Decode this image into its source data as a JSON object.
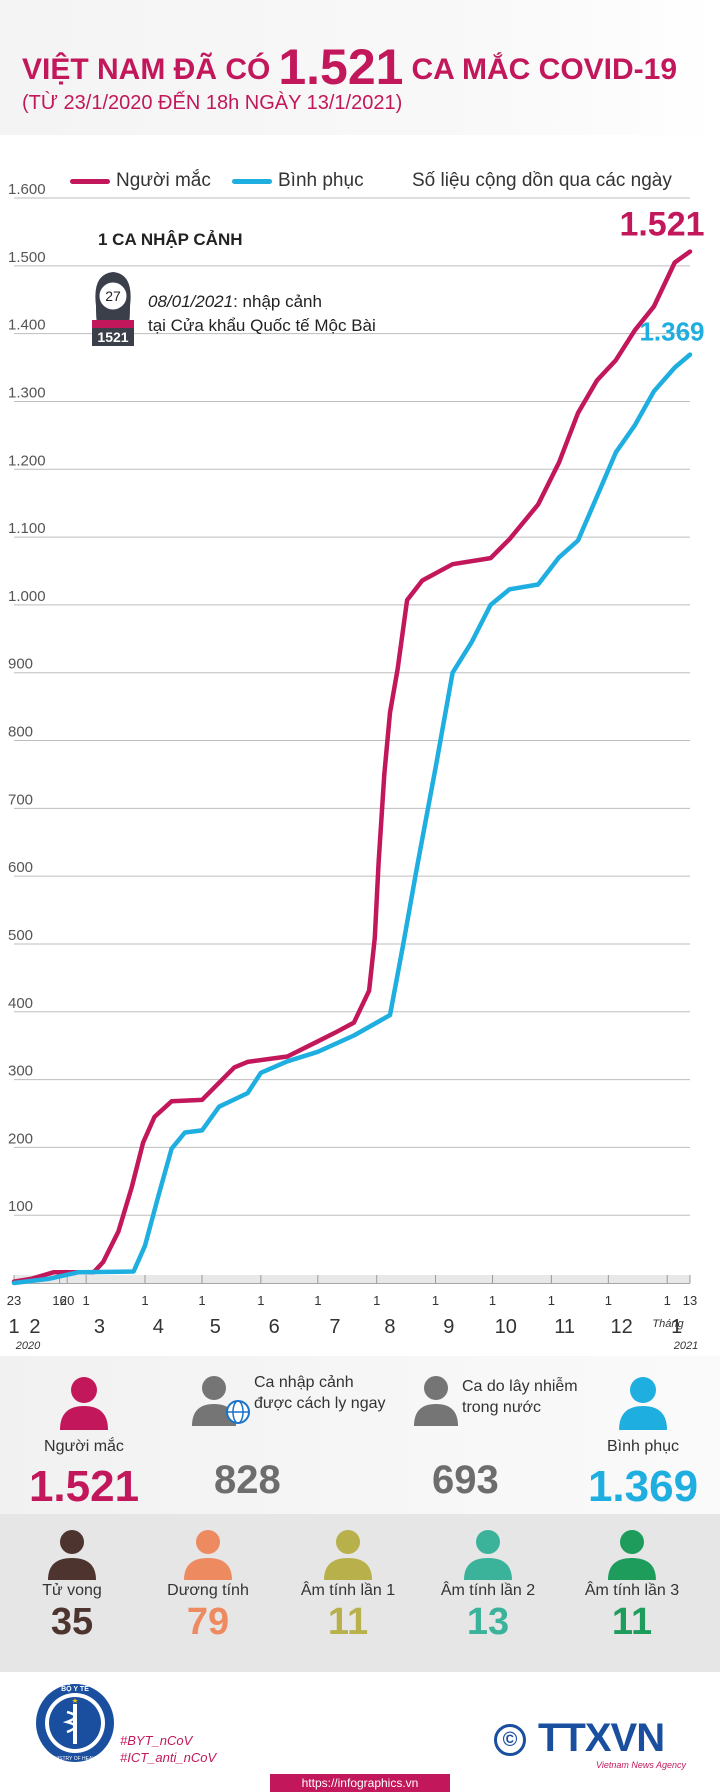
{
  "header": {
    "title_prefix": "VIỆT NAM ĐÃ CÓ",
    "title_number": "1.521",
    "title_suffix": "CA MẮC COVID-19",
    "subtitle": "(TỪ 23/1/2020 ĐẾN 18h NGÀY 13/1/2021)"
  },
  "legend": {
    "cases": "Người mắc",
    "recovered": "Bình phục",
    "note": "Số liệu cộng dồn qua các ngày"
  },
  "colors": {
    "cases": "#c2185b",
    "recovered": "#1eaee0",
    "grid": "#bdbdbd",
    "axis": "#555555"
  },
  "annotation": {
    "title": "1 CA NHẬP CẢNH",
    "badge_age": "27",
    "badge_id": "1521",
    "date": "08/01/2021",
    "text_line1": ": nhập cảnh",
    "text_line2": "tại Cửa khẩu Quốc tế Mộc Bài",
    "icon": "female-patient-icon"
  },
  "chart_data": {
    "type": "line",
    "ylim": [
      0,
      1600
    ],
    "y_ticks": [
      0,
      100,
      200,
      300,
      400,
      500,
      600,
      700,
      800,
      900,
      1000,
      1100,
      1200,
      1300,
      1400,
      1500,
      1600
    ],
    "y_tick_labels": [
      "",
      "100",
      "200",
      "300",
      "400",
      "500",
      "600",
      "700",
      "800",
      "900",
      "1.000",
      "1.100",
      "1.200",
      "1.300",
      "1.400",
      "1.500",
      "1.600"
    ],
    "x_start": "2020-01-23",
    "x_end": "2021-01-13",
    "x_day_labels": [
      {
        "date": "2020-01-23",
        "text": "23"
      },
      {
        "date": "2020-02-16",
        "text": "16"
      },
      {
        "date": "2020-02-20",
        "text": "20"
      },
      {
        "date": "2020-03-01",
        "text": "1"
      },
      {
        "date": "2020-04-01",
        "text": "1"
      },
      {
        "date": "2020-05-01",
        "text": "1"
      },
      {
        "date": "2020-06-01",
        "text": "1"
      },
      {
        "date": "2020-07-01",
        "text": "1"
      },
      {
        "date": "2020-08-01",
        "text": "1"
      },
      {
        "date": "2020-09-01",
        "text": "1"
      },
      {
        "date": "2020-10-01",
        "text": "1"
      },
      {
        "date": "2020-11-01",
        "text": "1"
      },
      {
        "date": "2020-12-01",
        "text": "1"
      },
      {
        "date": "2021-01-01",
        "text": "1"
      },
      {
        "date": "2021-01-13",
        "text": "13"
      }
    ],
    "x_month_labels": [
      {
        "date": "2020-01-23",
        "text": "1"
      },
      {
        "date": "2020-02-03",
        "text": "2"
      },
      {
        "date": "2020-03-08",
        "text": "3"
      },
      {
        "date": "2020-04-08",
        "text": "4"
      },
      {
        "date": "2020-05-08",
        "text": "5"
      },
      {
        "date": "2020-06-08",
        "text": "6"
      },
      {
        "date": "2020-07-10",
        "text": "7"
      },
      {
        "date": "2020-08-08",
        "text": "8"
      },
      {
        "date": "2020-09-08",
        "text": "9"
      },
      {
        "date": "2020-10-08",
        "text": "10"
      },
      {
        "date": "2020-11-08",
        "text": "11"
      },
      {
        "date": "2020-12-08",
        "text": "12"
      },
      {
        "date": "2021-01-06",
        "text": "1"
      }
    ],
    "year_start_label": "2020",
    "year_end_label": "2021",
    "month_word": "Tháng",
    "series": [
      {
        "name": "Người mắc",
        "color": "#c2185b",
        "end_label": "1.521",
        "points": [
          [
            "2020-01-23",
            2
          ],
          [
            "2020-02-01",
            6
          ],
          [
            "2020-02-13",
            16
          ],
          [
            "2020-03-05",
            16
          ],
          [
            "2020-03-10",
            31
          ],
          [
            "2020-03-18",
            76
          ],
          [
            "2020-03-25",
            141
          ],
          [
            "2020-03-31",
            207
          ],
          [
            "2020-04-06",
            245
          ],
          [
            "2020-04-15",
            268
          ],
          [
            "2020-05-01",
            270
          ],
          [
            "2020-05-18",
            318
          ],
          [
            "2020-05-25",
            326
          ],
          [
            "2020-06-15",
            334
          ],
          [
            "2020-06-30",
            355
          ],
          [
            "2020-07-10",
            369
          ],
          [
            "2020-07-20",
            384
          ],
          [
            "2020-07-28",
            431
          ],
          [
            "2020-07-31",
            509
          ],
          [
            "2020-08-02",
            620
          ],
          [
            "2020-08-05",
            750
          ],
          [
            "2020-08-08",
            841
          ],
          [
            "2020-08-12",
            905
          ],
          [
            "2020-08-17",
            1007
          ],
          [
            "2020-08-25",
            1036
          ],
          [
            "2020-09-10",
            1060
          ],
          [
            "2020-09-30",
            1069
          ],
          [
            "2020-10-10",
            1097
          ],
          [
            "2020-10-25",
            1148
          ],
          [
            "2020-11-05",
            1210
          ],
          [
            "2020-11-15",
            1283
          ],
          [
            "2020-11-25",
            1331
          ],
          [
            "2020-12-05",
            1361
          ],
          [
            "2020-12-15",
            1405
          ],
          [
            "2020-12-25",
            1440
          ],
          [
            "2021-01-05",
            1505
          ],
          [
            "2021-01-13",
            1521
          ]
        ]
      },
      {
        "name": "Bình phục",
        "color": "#1eaee0",
        "end_label": "1.369",
        "points": [
          [
            "2020-01-23",
            0
          ],
          [
            "2020-02-10",
            6
          ],
          [
            "2020-02-26",
            16
          ],
          [
            "2020-03-26",
            17
          ],
          [
            "2020-04-01",
            55
          ],
          [
            "2020-04-08",
            128
          ],
          [
            "2020-04-15",
            198
          ],
          [
            "2020-04-22",
            222
          ],
          [
            "2020-05-01",
            225
          ],
          [
            "2020-05-10",
            260
          ],
          [
            "2020-05-25",
            280
          ],
          [
            "2020-06-01",
            310
          ],
          [
            "2020-06-15",
            327
          ],
          [
            "2020-07-01",
            341
          ],
          [
            "2020-07-20",
            365
          ],
          [
            "2020-08-08",
            395
          ],
          [
            "2020-08-15",
            500
          ],
          [
            "2020-08-22",
            610
          ],
          [
            "2020-09-01",
            760
          ],
          [
            "2020-09-10",
            900
          ],
          [
            "2020-09-20",
            945
          ],
          [
            "2020-09-30",
            1000
          ],
          [
            "2020-10-10",
            1023
          ],
          [
            "2020-10-25",
            1030
          ],
          [
            "2020-11-05",
            1070
          ],
          [
            "2020-11-15",
            1095
          ],
          [
            "2020-11-25",
            1160
          ],
          [
            "2020-12-05",
            1225
          ],
          [
            "2020-12-15",
            1265
          ],
          [
            "2020-12-25",
            1315
          ],
          [
            "2021-01-05",
            1350
          ],
          [
            "2021-01-13",
            1369
          ]
        ]
      }
    ]
  },
  "stats": {
    "cases": {
      "label": "Người mắc",
      "value": "1.521",
      "icon": "person-icon"
    },
    "imported": {
      "label_line1": "Ca nhập cảnh",
      "label_line2": "được cách ly ngay",
      "value": "828",
      "icon": "person-globe-icon"
    },
    "domestic": {
      "label_line1": "Ca do lây nhiễm",
      "label_line2": "trong nước",
      "value": "693",
      "icon": "person-icon"
    },
    "recovered": {
      "label": "Bình phục",
      "value": "1.369",
      "icon": "person-icon"
    }
  },
  "stats2": [
    {
      "label": "Tử vong",
      "value": "35",
      "color": "#4e342e",
      "icon": "person-icon"
    },
    {
      "label": "Dương tính",
      "value": "79",
      "color": "#ee8a5f",
      "icon": "person-icon"
    },
    {
      "label": "Âm tính lần 1",
      "value": "11",
      "color": "#b8b04a",
      "icon": "person-icon"
    },
    {
      "label": "Âm tính lần 2",
      "value": "13",
      "color": "#3ab39a",
      "icon": "person-icon"
    },
    {
      "label": "Âm tính lần 3",
      "value": "11",
      "color": "#1e9c5c",
      "icon": "person-icon"
    }
  ],
  "footer": {
    "hashtag1": "#BYT_nCoV",
    "hashtag2": "#ICT_anti_nCoV",
    "url": "https://infographics.vn",
    "agency_logo": "TTXVN",
    "agency_sub": "Vietnam News Agency",
    "copyright_symbol": "©",
    "ministry_logo_text": "BỘ Y TẾ",
    "ministry_logo_sub": "MINISTRY OF HEALTH"
  }
}
